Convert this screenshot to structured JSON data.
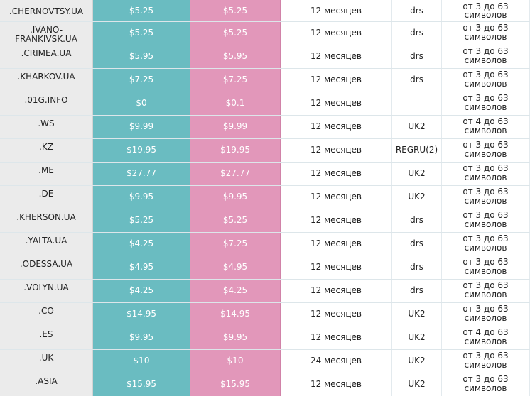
{
  "rows": [
    {
      "domain": ".CHERNOVTSY.UA",
      "price_register": "$5.25",
      "price_renew": "$5.25",
      "term": "12 месяцев",
      "registrar": "drs",
      "length": "от 3 до 63 символов"
    },
    {
      "domain": ".IVANO-FRANKIVSK.UA",
      "price_register": "$5.25",
      "price_renew": "$5.25",
      "term": "12 месяцев",
      "registrar": "drs",
      "length": "от 3 до 63 символов"
    },
    {
      "domain": ".CRIMEA.UA",
      "price_register": "$5.95",
      "price_renew": "$5.95",
      "term": "12 месяцев",
      "registrar": "drs",
      "length": "от 3 до 63 символов"
    },
    {
      "domain": ".KHARKOV.UA",
      "price_register": "$7.25",
      "price_renew": "$7.25",
      "term": "12 месяцев",
      "registrar": "drs",
      "length": "от 3 до 63 символов"
    },
    {
      "domain": ".01G.INFO",
      "price_register": "$0",
      "price_renew": "$0.1",
      "term": "12 месяцев",
      "registrar": "",
      "length": "от 3 до 63 символов"
    },
    {
      "domain": ".WS",
      "price_register": "$9.99",
      "price_renew": "$9.99",
      "term": "12 месяцев",
      "registrar": "UK2",
      "length": "от 4 до 63 символов"
    },
    {
      "domain": ".KZ",
      "price_register": "$19.95",
      "price_renew": "$19.95",
      "term": "12 месяцев",
      "registrar": "REGRU(2)",
      "length": "от 3 до 63 символов"
    },
    {
      "domain": ".ME",
      "price_register": "$27.77",
      "price_renew": "$27.77",
      "term": "12 месяцев",
      "registrar": "UK2",
      "length": "от 3 до 63 символов"
    },
    {
      "domain": ".DE",
      "price_register": "$9.95",
      "price_renew": "$9.95",
      "term": "12 месяцев",
      "registrar": "UK2",
      "length": "от 3 до 63 символов"
    },
    {
      "domain": ".KHERSON.UA",
      "price_register": "$5.25",
      "price_renew": "$5.25",
      "term": "12 месяцев",
      "registrar": "drs",
      "length": "от 3 до 63 символов"
    },
    {
      "domain": ".YALTA.UA",
      "price_register": "$4.25",
      "price_renew": "$7.25",
      "term": "12 месяцев",
      "registrar": "drs",
      "length": "от 3 до 63 символов"
    },
    {
      "domain": ".ODESSA.UA",
      "price_register": "$4.95",
      "price_renew": "$4.95",
      "term": "12 месяцев",
      "registrar": "drs",
      "length": "от 3 до 63 символов"
    },
    {
      "domain": ".VOLYN.UA",
      "price_register": "$4.25",
      "price_renew": "$4.25",
      "term": "12 месяцев",
      "registrar": "drs",
      "length": "от 3 до 63 символов"
    },
    {
      "domain": ".CO",
      "price_register": "$14.95",
      "price_renew": "$14.95",
      "term": "12 месяцев",
      "registrar": "UK2",
      "length": "от 3 до 63 символов"
    },
    {
      "domain": ".ES",
      "price_register": "$9.95",
      "price_renew": "$9.95",
      "term": "12 месяцев",
      "registrar": "UK2",
      "length": "от 4 до 63 символов"
    },
    {
      "domain": ".UK",
      "price_register": "$10",
      "price_renew": "$10",
      "term": "24 месяцев",
      "registrar": "UK2",
      "length": "от 3 до 63 символов"
    },
    {
      "domain": ".ASIA",
      "price_register": "$15.95",
      "price_renew": "$15.95",
      "term": "12 месяцев",
      "registrar": "UK2",
      "length": "от 3 до 63 символов"
    }
  ]
}
